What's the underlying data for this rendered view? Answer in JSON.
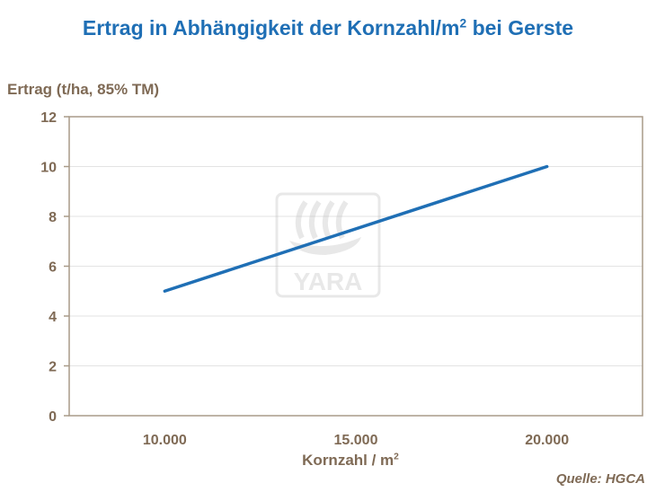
{
  "chart_data": {
    "type": "line",
    "title_main": "Ertrag in Abhängigkeit der Kornzahl/m",
    "title_sup": "2",
    "title_tail": " bei Gerste",
    "ylabel": "Ertrag (t/ha, 85% TM)",
    "xlabel_main": "Kornzahl / m",
    "xlabel_sup": "2",
    "source": "Quelle:  HGCA",
    "watermark": "YARA",
    "xlim": [
      7500,
      22500
    ],
    "ylim": [
      0,
      12
    ],
    "x_ticks": [
      10000,
      15000,
      20000
    ],
    "x_tick_labels": [
      "10.000",
      "15.000",
      "20.000"
    ],
    "y_ticks": [
      0,
      2,
      4,
      6,
      8,
      10,
      12
    ],
    "y_tick_labels": [
      "0",
      "2",
      "4",
      "6",
      "8",
      "10",
      "12"
    ],
    "grid": true,
    "series": [
      {
        "x": [
          10000,
          20000
        ],
        "y": [
          5,
          10
        ],
        "color": "#1f6fb5"
      }
    ]
  }
}
